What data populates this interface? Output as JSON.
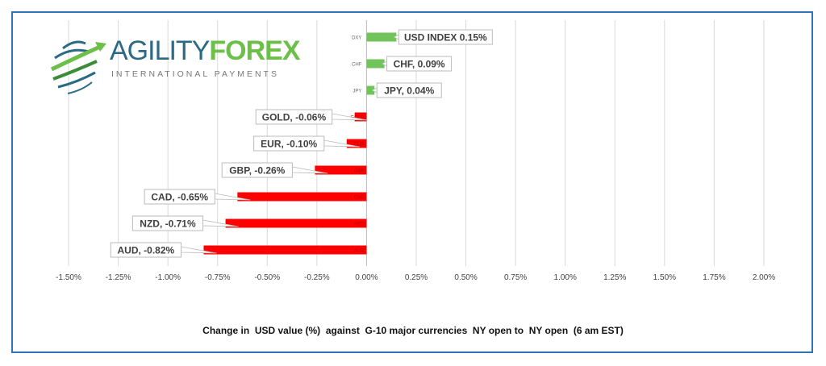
{
  "logo": {
    "brand_part1": "AGILITY",
    "brand_part2": "FOREX",
    "tagline": "INTERNATIONAL PAYMENTS"
  },
  "chart_data": {
    "type": "bar",
    "orientation": "horizontal",
    "categories": [
      "DXY",
      "CHF",
      "JPY",
      "GOLD",
      "EUR",
      "GBP",
      "CAD",
      "NZD",
      "AUD"
    ],
    "values": [
      0.15,
      0.09,
      0.04,
      -0.06,
      -0.1,
      -0.26,
      -0.65,
      -0.71,
      -0.82
    ],
    "data_labels": [
      "USD INDEX 0.15%",
      "CHF, 0.09%",
      "JPY, 0.04%",
      "GOLD, -0.06%",
      "EUR, -0.10%",
      "GBP, -0.26%",
      "CAD, -0.65%",
      "NZD, -0.71%",
      "AUD, -0.82%"
    ],
    "xlim": [
      -1.5,
      2.0
    ],
    "x_ticks": [
      -1.5,
      -1.25,
      -1.0,
      -0.75,
      -0.5,
      -0.25,
      0,
      0.25,
      0.5,
      0.75,
      1.0,
      1.25,
      1.5,
      1.75,
      2.0
    ],
    "x_tick_labels": [
      "-1.50%",
      "-1.25%",
      "-1.00%",
      "-0.75%",
      "-0.50%",
      "-0.25%",
      "0.00%",
      "0.25%",
      "0.50%",
      "0.75%",
      "1.00%",
      "1.25%",
      "1.50%",
      "1.75%",
      "2.00%"
    ],
    "grid": true,
    "colors": {
      "positive": "#70c45a",
      "negative": "#ff0000",
      "grid": "#d9d9d9",
      "frame": "#2f75b5"
    },
    "caption": "Change in  USD value (%)  against  G-10 major currencies  NY open to  NY open  (6 am EST)"
  }
}
